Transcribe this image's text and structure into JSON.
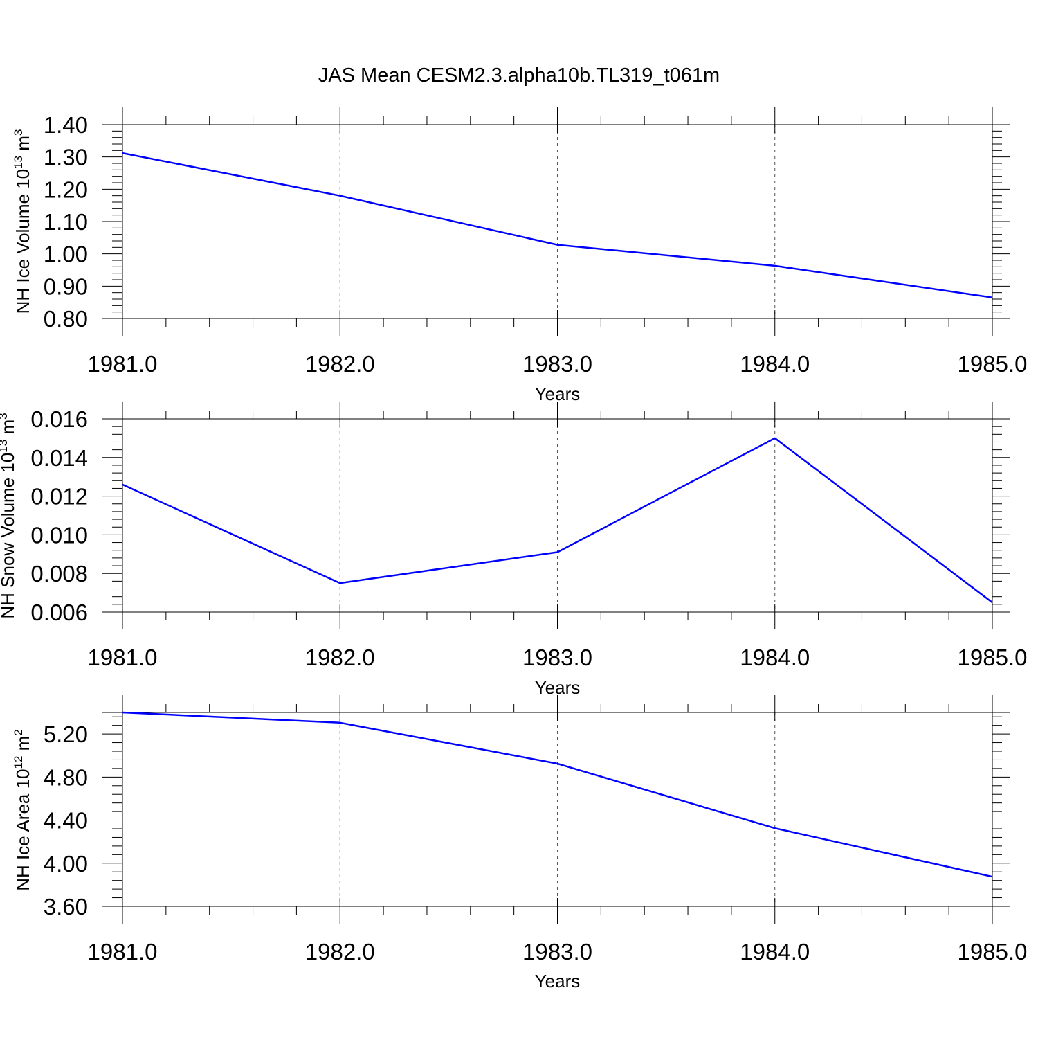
{
  "title": "JAS Mean CESM2.3.alpha10b.TL319_t061m",
  "colors": {
    "series": "#0000ff",
    "axis": "#000000",
    "grid": "#555555"
  },
  "chart_data": [
    {
      "type": "line",
      "ylabel_main": "NH Ice Volume 10",
      "ylabel_exp": "13",
      "ylabel_unit": " m",
      "ylabel_unit_exp": "3",
      "xlabel": "Years",
      "x": [
        1981,
        1982,
        1983,
        1984,
        1985
      ],
      "x_tick_labels": [
        "1981.0",
        "1982.0",
        "1983.0",
        "1984.0",
        "1985.0"
      ],
      "xlim": [
        1981,
        1985
      ],
      "ylim": [
        0.8,
        1.4
      ],
      "y_ticks": [
        0.8,
        0.9,
        1.0,
        1.1,
        1.2,
        1.3,
        1.4
      ],
      "y_tick_labels": [
        "0.80",
        "0.90",
        "1.00",
        "1.10",
        "1.20",
        "1.30",
        "1.40"
      ],
      "grid": "vertical dashed at major x ticks",
      "series": [
        {
          "values": [
            1.312,
            1.18,
            1.028,
            0.963,
            0.865
          ]
        }
      ]
    },
    {
      "type": "line",
      "ylabel_main": "NH Snow Volume 10",
      "ylabel_exp": "13",
      "ylabel_unit": " m",
      "ylabel_unit_exp": "3",
      "xlabel": "Years",
      "x": [
        1981,
        1982,
        1983,
        1984,
        1985
      ],
      "x_tick_labels": [
        "1981.0",
        "1982.0",
        "1983.0",
        "1984.0",
        "1985.0"
      ],
      "xlim": [
        1981,
        1985
      ],
      "ylim": [
        0.006,
        0.016
      ],
      "y_ticks": [
        0.006,
        0.008,
        0.01,
        0.012,
        0.014,
        0.016
      ],
      "y_tick_labels": [
        "0.006",
        "0.008",
        "0.010",
        "0.012",
        "0.014",
        "0.016"
      ],
      "grid": "vertical dashed at major x ticks",
      "series": [
        {
          "values": [
            0.0126,
            0.0075,
            0.0091,
            0.015,
            0.0065
          ]
        }
      ]
    },
    {
      "type": "line",
      "ylabel_main": "NH Ice Area 10",
      "ylabel_exp": "12",
      "ylabel_unit": " m",
      "ylabel_unit_exp": "2",
      "xlabel": "Years",
      "x": [
        1981,
        1982,
        1983,
        1984,
        1985
      ],
      "x_tick_labels": [
        "1981.0",
        "1982.0",
        "1983.0",
        "1984.0",
        "1985.0"
      ],
      "xlim": [
        1981,
        1985
      ],
      "ylim": [
        3.6,
        5.4
      ],
      "y_ticks": [
        3.6,
        4.0,
        4.4,
        4.8,
        5.2
      ],
      "y_tick_labels": [
        "3.60",
        "4.00",
        "4.40",
        "4.80",
        "5.20"
      ],
      "grid": "vertical dashed at major x ticks",
      "series": [
        {
          "values": [
            5.4,
            5.305,
            4.925,
            4.325,
            3.875
          ]
        }
      ]
    }
  ]
}
